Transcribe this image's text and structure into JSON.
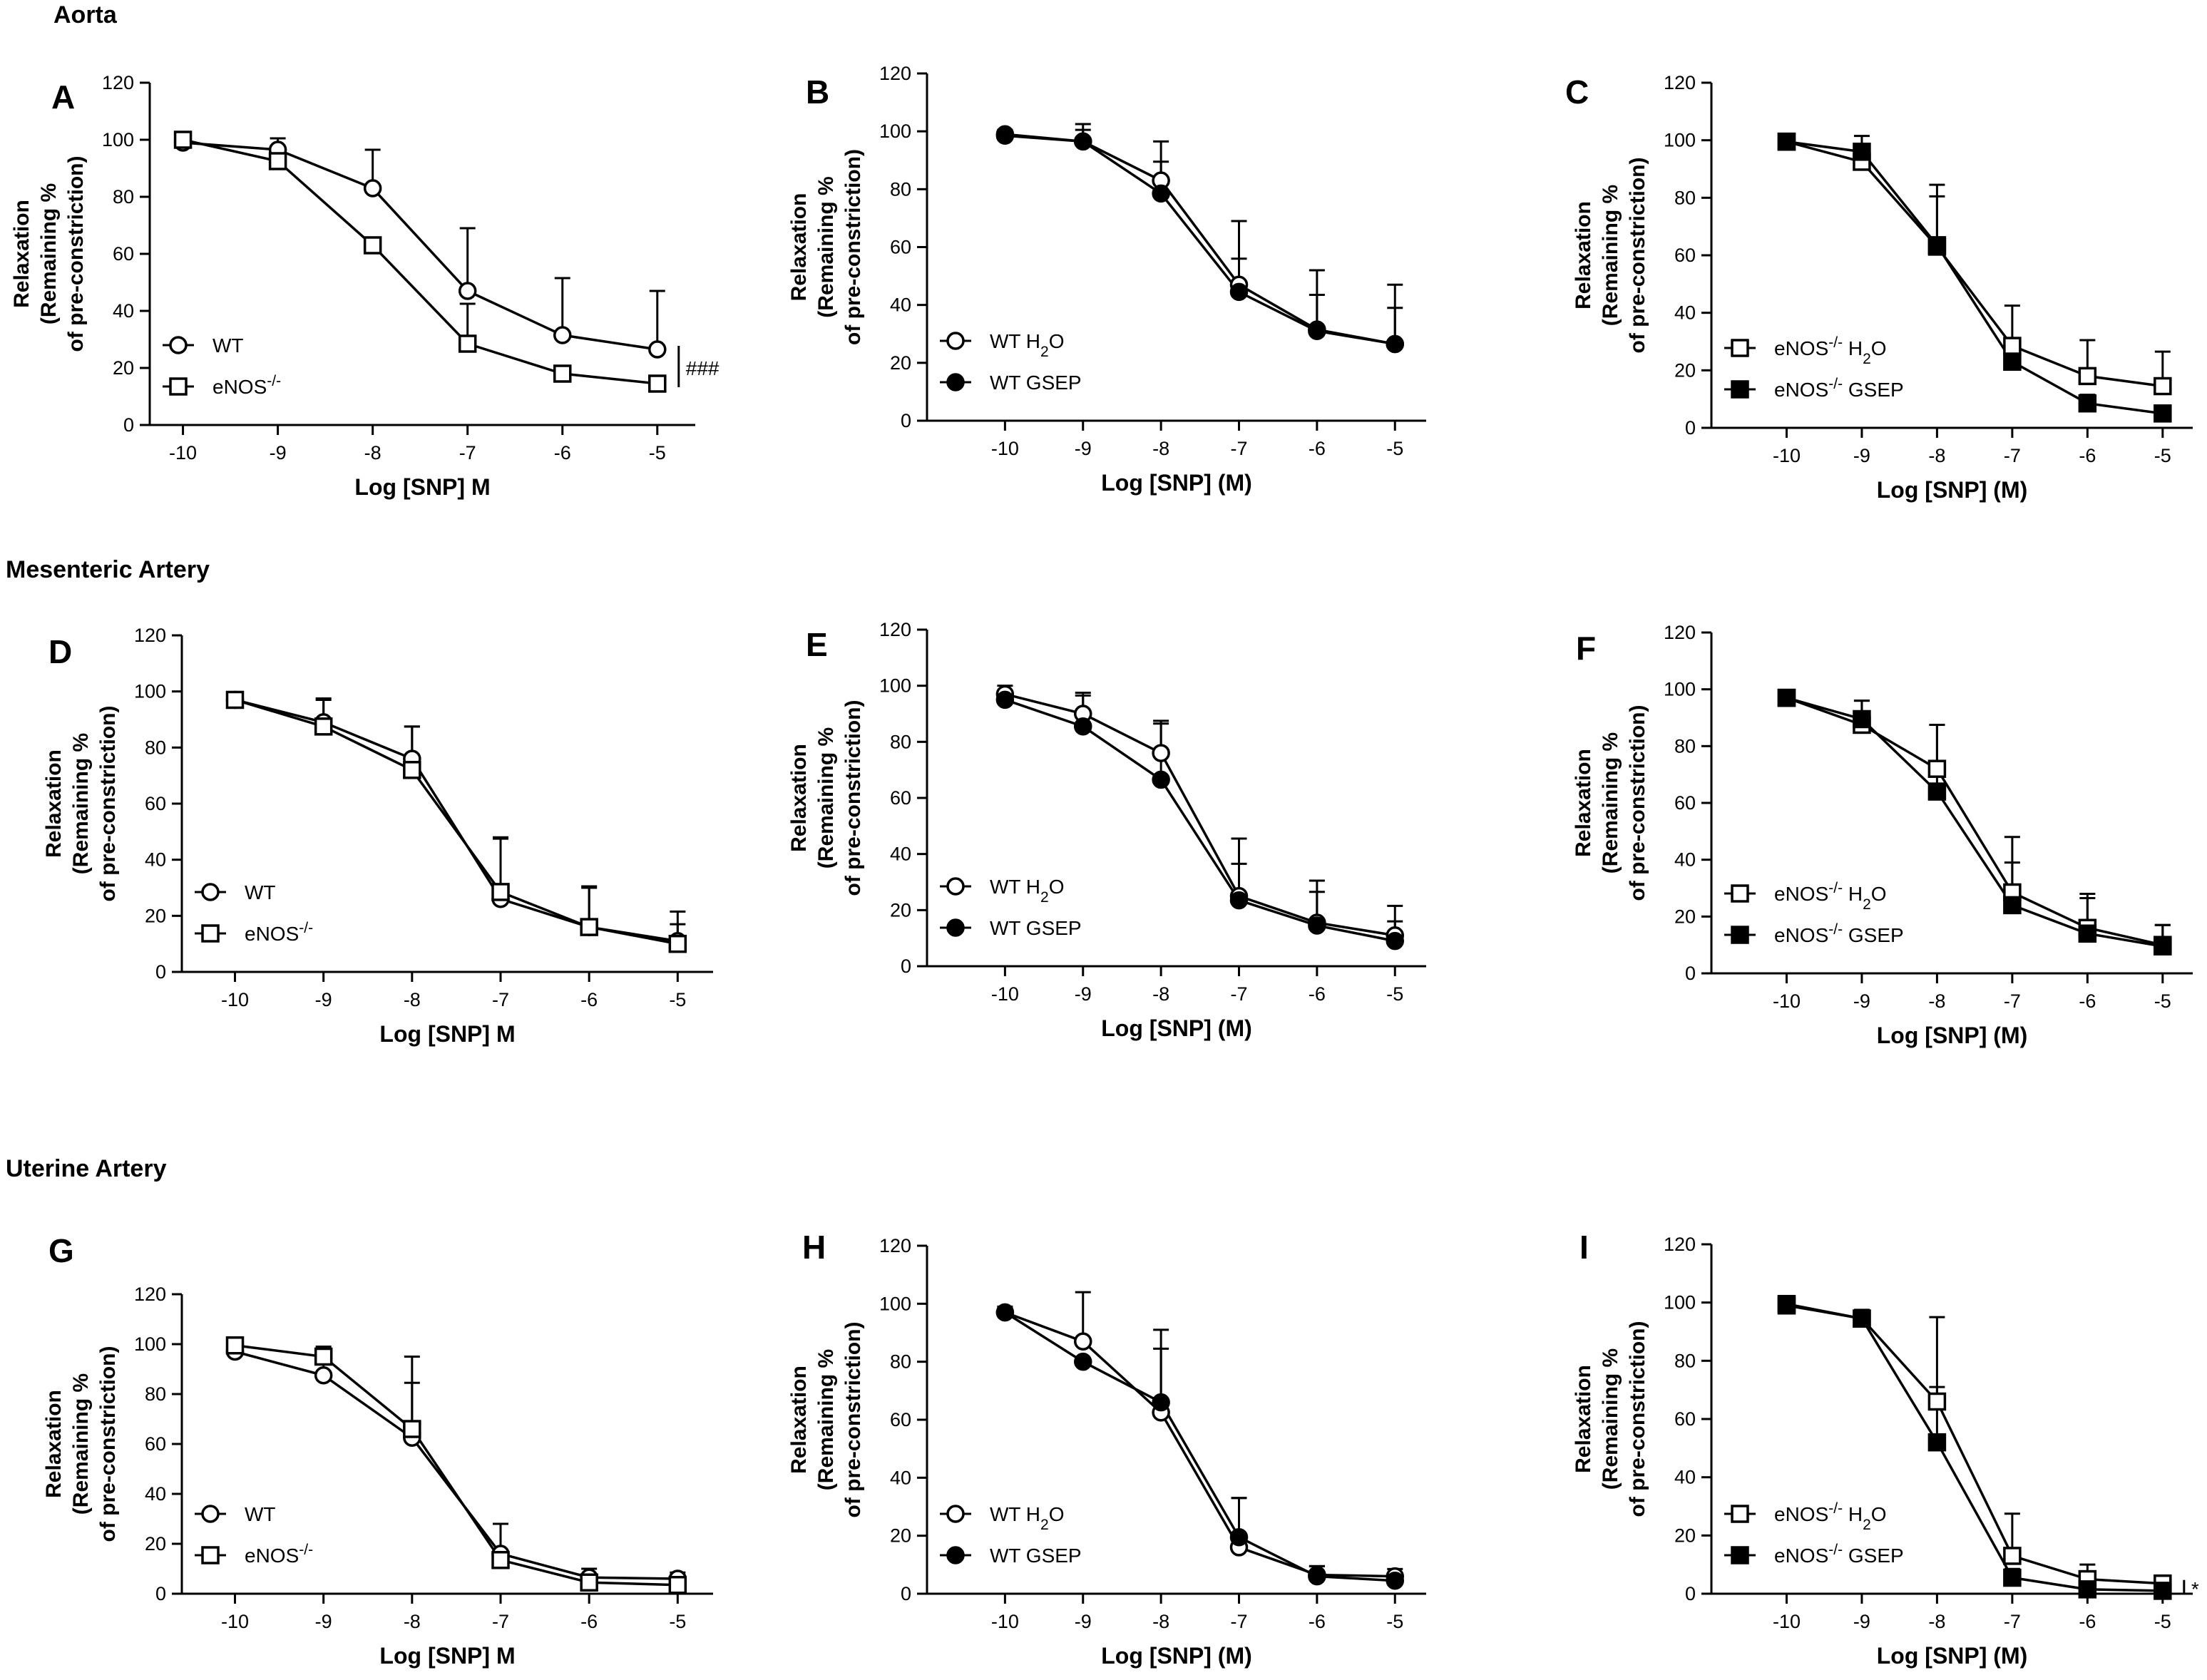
{
  "figure": {
    "sections": [
      {
        "id": "aorta",
        "title": "Aorta"
      },
      {
        "id": "mesenteric",
        "title": "Mesenteric Artery"
      },
      {
        "id": "uterine",
        "title": "Uterine Artery"
      }
    ]
  },
  "chart_data": [
    {
      "panel": "A",
      "type": "line",
      "section": "Aorta",
      "xlabel": "Log [SNP] M",
      "ylabel": [
        "Relaxation",
        "(Remaining %",
        "of pre-constriction)"
      ],
      "x": [
        -10,
        -9,
        -8,
        -7,
        -6,
        -5
      ],
      "xlim": [
        -10.35,
        -4.6
      ],
      "ylim": [
        0,
        120
      ],
      "yticks": [
        0,
        20,
        40,
        60,
        80,
        100,
        120
      ],
      "legend_position": "lower-left",
      "series": [
        {
          "name": "WT",
          "marker": "open-circle",
          "values": [
            99,
            96.5,
            83,
            47,
            31.5,
            26.5
          ],
          "err": [
            2,
            4,
            13.5,
            22,
            20,
            20.5
          ]
        },
        {
          "name": "eNOS-/-",
          "marker": "open-square",
          "values": [
            100,
            92.5,
            63,
            28.5,
            18,
            14.5
          ],
          "err": [
            1,
            3,
            0,
            14,
            0,
            0
          ]
        }
      ],
      "annotation": "###"
    },
    {
      "panel": "B",
      "type": "line",
      "section": "Aorta",
      "xlabel": "Log [SNP] (M)",
      "ylabel": [
        "Relaxation",
        "(Remaining %",
        "of pre-constriction)"
      ],
      "x": [
        -10,
        -9,
        -8,
        -7,
        -6,
        -5
      ],
      "xlim": [
        -11,
        -4.6
      ],
      "ylim": [
        0,
        120
      ],
      "yticks": [
        0,
        20,
        40,
        60,
        80,
        100,
        120
      ],
      "legend_position": "lower-left",
      "series": [
        {
          "name": "WT H2O",
          "marker": "open-circle",
          "values": [
            99,
            96.5,
            83,
            47,
            31.5,
            26.5
          ],
          "err": [
            1.5,
            6,
            13.5,
            22,
            20.5,
            20.5
          ]
        },
        {
          "name": "WT GSEP",
          "marker": "filled-circle",
          "values": [
            98.5,
            96.5,
            78.5,
            44.5,
            31,
            26.5
          ],
          "err": [
            1,
            4,
            11,
            11.5,
            12.5,
            12.5
          ]
        }
      ],
      "annotation": ""
    },
    {
      "panel": "C",
      "type": "line",
      "section": "Aorta",
      "xlabel": "Log [SNP] (M)",
      "ylabel": [
        "Relaxation",
        "(Remaining %",
        "of pre-constriction)"
      ],
      "x": [
        -10,
        -9,
        -8,
        -7,
        -6,
        -5
      ],
      "xlim": [
        -11,
        -4.6
      ],
      "ylim": [
        0,
        120
      ],
      "yticks": [
        0,
        20,
        40,
        60,
        80,
        100,
        120
      ],
      "legend_position": "lower-left",
      "series": [
        {
          "name": "eNOS-/- H2O",
          "marker": "open-square",
          "values": [
            99.5,
            92.5,
            63,
            28.5,
            18,
            14.5
          ],
          "err": [
            1,
            3,
            21.5,
            14,
            12.5,
            12
          ]
        },
        {
          "name": "eNOS-/- GSEP",
          "marker": "filled-square",
          "values": [
            99.5,
            96,
            63.5,
            23,
            8.5,
            5
          ],
          "err": [
            1,
            5.5,
            17,
            5,
            3,
            2
          ]
        }
      ],
      "annotation": ""
    },
    {
      "panel": "D",
      "type": "line",
      "section": "Mesenteric Artery",
      "xlabel": "Log [SNP] M",
      "ylabel": [
        "Relaxation",
        "(Remaining %",
        "of pre-constriction)"
      ],
      "x": [
        -10,
        -9,
        -8,
        -7,
        -6,
        -5
      ],
      "xlim": [
        -10.6,
        -4.6
      ],
      "ylim": [
        0,
        120
      ],
      "yticks": [
        0,
        20,
        40,
        60,
        80,
        100,
        120
      ],
      "legend_position": "lower-left",
      "series": [
        {
          "name": "WT",
          "marker": "open-circle",
          "values": [
            97,
            89,
            76,
            26,
            16,
            11
          ],
          "err": [
            1.5,
            8.5,
            11.5,
            21.5,
            14,
            10.5
          ]
        },
        {
          "name": "eNOS-/-",
          "marker": "open-square",
          "values": [
            97,
            87.5,
            72,
            28.5,
            16,
            10
          ],
          "err": [
            1.5,
            9.5,
            15.5,
            19.5,
            14.5,
            7
          ]
        }
      ],
      "annotation": ""
    },
    {
      "panel": "E",
      "type": "line",
      "section": "Mesenteric Artery",
      "xlabel": "Log [SNP] (M)",
      "ylabel": [
        "Relaxation",
        "(Remaining %",
        "of pre-constriction)"
      ],
      "x": [
        -10,
        -9,
        -8,
        -7,
        -6,
        -5
      ],
      "xlim": [
        -11,
        -4.6
      ],
      "ylim": [
        0,
        120
      ],
      "yticks": [
        0,
        20,
        40,
        60,
        80,
        100,
        120
      ],
      "legend_position": "lower-left",
      "series": [
        {
          "name": "WT H2O",
          "marker": "open-circle",
          "values": [
            97,
            90,
            76,
            25,
            15.5,
            11
          ],
          "err": [
            3,
            7.5,
            11.5,
            20.5,
            15,
            10.5
          ]
        },
        {
          "name": "WT GSEP",
          "marker": "filled-circle",
          "values": [
            95,
            85.5,
            66.5,
            23.5,
            14.5,
            9
          ],
          "err": [
            2,
            11,
            20,
            13,
            12,
            7
          ]
        }
      ],
      "annotation": ""
    },
    {
      "panel": "F",
      "type": "line",
      "section": "Mesenteric Artery",
      "xlabel": "Log [SNP] (M)",
      "ylabel": [
        "Relaxation",
        "(Remaining %",
        "of pre-constriction)"
      ],
      "x": [
        -10,
        -9,
        -8,
        -7,
        -6,
        -5
      ],
      "xlim": [
        -11,
        -4.6
      ],
      "ylim": [
        0,
        120
      ],
      "yticks": [
        0,
        20,
        40,
        60,
        80,
        100,
        120
      ],
      "legend_position": "lower-left",
      "series": [
        {
          "name": "eNOS-/- H2O",
          "marker": "open-square",
          "values": [
            97,
            87.5,
            72,
            28.5,
            16,
            10
          ],
          "err": [
            1,
            8.5,
            15.5,
            19.5,
            12,
            7
          ]
        },
        {
          "name": "eNOS-/- GSEP",
          "marker": "filled-square",
          "values": [
            97,
            89.5,
            64,
            24,
            14,
            9.5
          ],
          "err": [
            1,
            6.5,
            23.5,
            15,
            12.5,
            7.5
          ]
        }
      ],
      "annotation": ""
    },
    {
      "panel": "G",
      "type": "line",
      "section": "Uterine Artery",
      "xlabel": "Log [SNP] M",
      "ylabel": [
        "Relaxation",
        "(Remaining %",
        "of pre-constriction)"
      ],
      "x": [
        -10,
        -9,
        -8,
        -7,
        -6,
        -5
      ],
      "xlim": [
        -10.6,
        -4.6
      ],
      "ylim": [
        0,
        120
      ],
      "yticks": [
        0,
        20,
        40,
        60,
        80,
        100,
        120
      ],
      "legend_position": "lower-left",
      "series": [
        {
          "name": "WT",
          "marker": "open-circle",
          "values": [
            97,
            87.5,
            62.5,
            16,
            6.5,
            6
          ],
          "err": [
            2,
            8,
            22,
            12,
            3.5,
            2.5
          ]
        },
        {
          "name": "eNOS-/-",
          "marker": "open-square",
          "values": [
            99.5,
            95,
            66,
            13.5,
            4.5,
            3.5
          ],
          "err": [
            1,
            4,
            29,
            14.5,
            2.5,
            2
          ]
        }
      ],
      "annotation": ""
    },
    {
      "panel": "H",
      "type": "line",
      "section": "Uterine Artery",
      "xlabel": "Log [SNP] (M)",
      "ylabel": [
        "Relaxation",
        "(Remaining %",
        "of pre-constriction)"
      ],
      "x": [
        -10,
        -9,
        -8,
        -7,
        -6,
        -5
      ],
      "xlim": [
        -11,
        -4.6
      ],
      "ylim": [
        0,
        120
      ],
      "yticks": [
        0,
        20,
        40,
        60,
        80,
        100,
        120
      ],
      "legend_position": "lower-left",
      "series": [
        {
          "name": "WT H2O",
          "marker": "open-circle",
          "values": [
            97,
            87,
            62.5,
            16,
            6.5,
            6
          ],
          "err": [
            2,
            17,
            22,
            17,
            3,
            2.5
          ]
        },
        {
          "name": "WT GSEP",
          "marker": "filled-circle",
          "values": [
            97,
            80,
            66,
            19.5,
            6,
            4.5
          ],
          "err": [
            1,
            0,
            25,
            13.5,
            3.5,
            2
          ]
        }
      ],
      "annotation": ""
    },
    {
      "panel": "I",
      "type": "line",
      "section": "Uterine Artery",
      "xlabel": "Log [SNP] (M)",
      "ylabel": [
        "Relaxation",
        "(Remaining %",
        "of pre-constriction)"
      ],
      "x": [
        -10,
        -9,
        -8,
        -7,
        -6,
        -5
      ],
      "xlim": [
        -11,
        -4.6
      ],
      "ylim": [
        0,
        120
      ],
      "yticks": [
        0,
        20,
        40,
        60,
        80,
        100,
        120
      ],
      "legend_position": "lower-left",
      "series": [
        {
          "name": "eNOS-/- H2O",
          "marker": "open-square",
          "values": [
            99.5,
            94.5,
            66,
            13,
            5,
            3.5
          ],
          "err": [
            1,
            3,
            29,
            14.5,
            5,
            2.5
          ]
        },
        {
          "name": "eNOS-/- GSEP",
          "marker": "filled-square",
          "values": [
            99,
            94.5,
            52,
            5.5,
            1.5,
            1
          ],
          "err": [
            1,
            2,
            19,
            3,
            2,
            1.5
          ]
        }
      ],
      "annotation": "*"
    }
  ]
}
